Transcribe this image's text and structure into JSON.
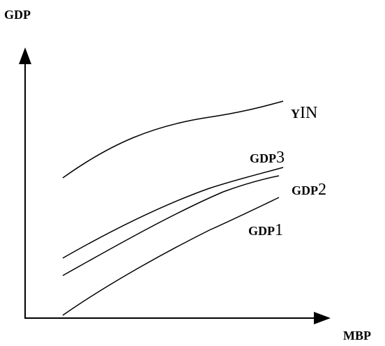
{
  "axes": {
    "y_label": "GDP",
    "x_label": "MBP"
  },
  "curves": [
    {
      "name": "YIN",
      "label_part1": "Y",
      "label_part2": "IN"
    },
    {
      "name": "GDP3",
      "label_part1": "GDP",
      "label_part2": "3"
    },
    {
      "name": "GDP2",
      "label_part1": "GDP",
      "label_part2": "2"
    },
    {
      "name": "GDP1",
      "label_part1": "GDP",
      "label_part2": "1"
    }
  ]
}
